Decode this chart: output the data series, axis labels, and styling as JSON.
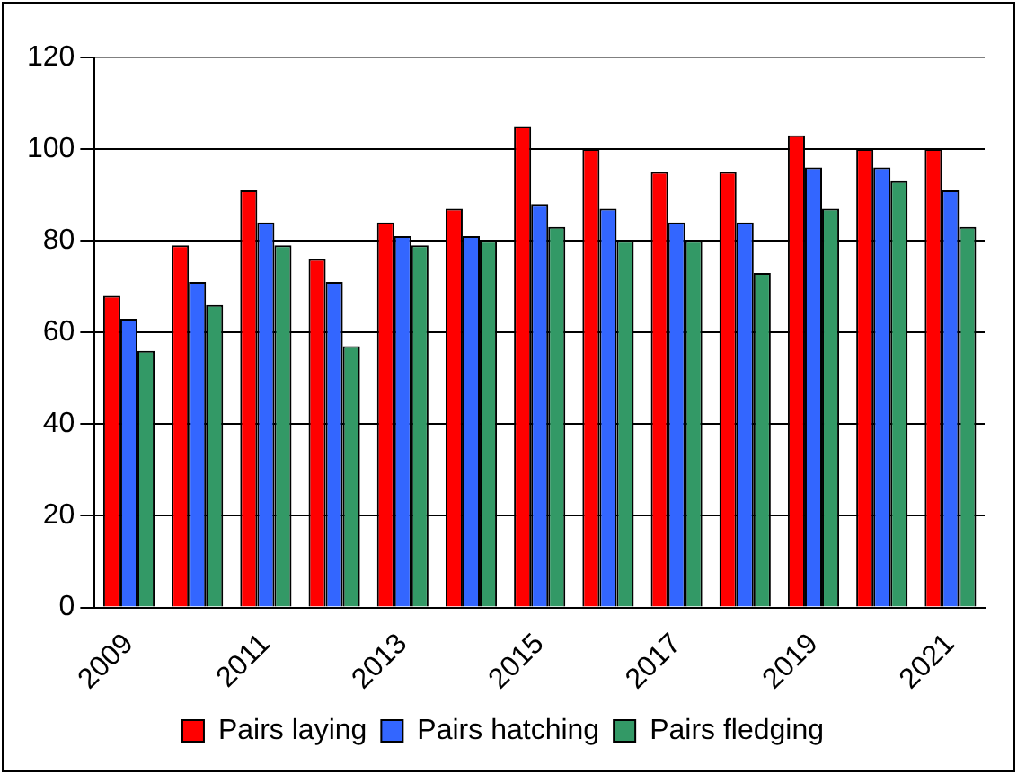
{
  "chart_data": {
    "type": "bar",
    "categories": [
      "2009",
      null,
      "2011",
      null,
      "2013",
      null,
      "2015",
      null,
      "2017",
      null,
      "2019",
      null,
      "2021"
    ],
    "series": [
      {
        "name": "Pairs laying",
        "color": "#ff0000",
        "values": [
          68,
          79,
          91,
          76,
          84,
          87,
          105,
          100,
          95,
          95,
          103,
          100,
          100
        ]
      },
      {
        "name": "Pairs hatching",
        "color": "#3366ff",
        "values": [
          63,
          71,
          84,
          71,
          81,
          81,
          88,
          87,
          84,
          84,
          96,
          96,
          91
        ]
      },
      {
        "name": "Pairs fledging",
        "color": "#339966",
        "values": [
          56,
          66,
          79,
          57,
          79,
          80,
          83,
          80,
          80,
          73,
          87,
          93,
          83
        ]
      }
    ],
    "ylim": [
      0,
      120
    ],
    "yticks": [
      0,
      20,
      40,
      60,
      80,
      100,
      120
    ],
    "grid": "y",
    "legend": "bottom"
  }
}
